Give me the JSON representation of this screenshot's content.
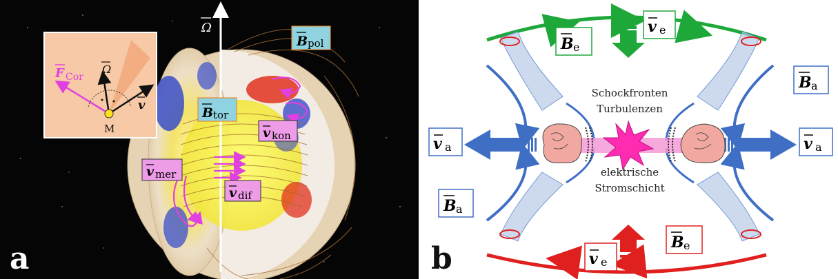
{
  "panel_a": {
    "letter": "a",
    "omega_axis_label": "Ω",
    "labels": {
      "B_pol": {
        "sym": "B",
        "sub": "pol"
      },
      "B_tor": {
        "sym": "B",
        "sub": "tor"
      },
      "v_kon": {
        "sym": "v",
        "sub": "kon"
      },
      "v_mer": {
        "sym": "v",
        "sub": "mer"
      },
      "v_dif": {
        "sym": "v",
        "sub": "dif"
      }
    },
    "inset": {
      "F_cor": {
        "sym": "F",
        "sub": "Cor"
      },
      "omega": "Ω",
      "v": "v",
      "point": "M"
    }
  },
  "panel_b": {
    "letter": "b",
    "labels": {
      "B_e_top": {
        "sym": "B",
        "sub": "e"
      },
      "v_e_top": {
        "sym": "v",
        "sub": "e"
      },
      "B_a_right": {
        "sym": "B",
        "sub": "a"
      },
      "v_a_left": {
        "sym": "v",
        "sub": "a"
      },
      "v_a_right": {
        "sym": "v",
        "sub": "a"
      },
      "B_a_left": {
        "sym": "B",
        "sub": "a"
      },
      "v_e_bottom": {
        "sym": "v",
        "sub": "e"
      },
      "B_e_bottom": {
        "sym": "B",
        "sub": "e"
      }
    },
    "text": {
      "line1": "Schockfronten",
      "line2": "Turbulenzen",
      "line3": "elektrische",
      "line4": "Stromschicht"
    }
  },
  "colors": {
    "magenta": "#e040e0",
    "green": "#1fa83a",
    "red": "#e0201e",
    "blue": "#3f6fc4",
    "label_blue_bg": "#8fd3e0",
    "label_pink_bg": "#ee9be8",
    "inset_bg": "#f7c9a6"
  }
}
